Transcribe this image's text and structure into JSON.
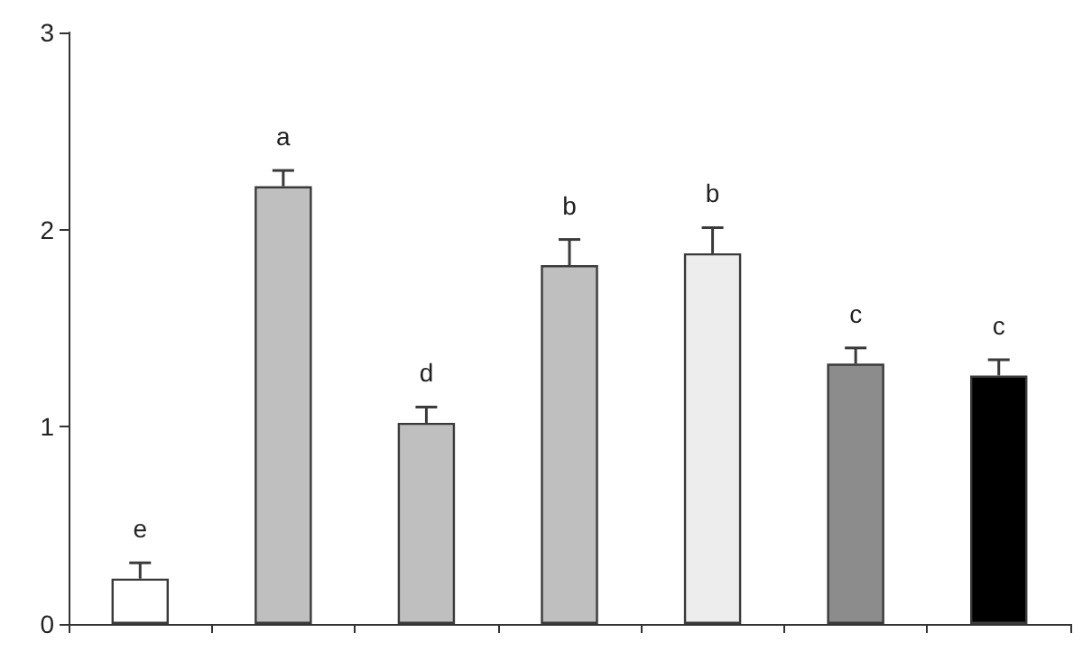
{
  "chart_data": {
    "type": "bar",
    "categories": [
      null,
      null,
      null,
      null,
      null,
      null,
      null
    ],
    "values": [
      0.23,
      2.22,
      1.02,
      1.82,
      1.88,
      1.32,
      1.26
    ],
    "errors": [
      0.08,
      0.08,
      0.08,
      0.13,
      0.13,
      0.08,
      0.08
    ],
    "value_labels": [
      "e",
      "a",
      "d",
      "b",
      "b",
      "c",
      "c"
    ],
    "colors": [
      "#ffffff",
      "#bfbfbf",
      "#bfbfbf",
      "#bfbfbf",
      "#ededed",
      "#8c8c8c",
      "#000000"
    ],
    "ylim": [
      0,
      3
    ],
    "yticks": [
      0,
      1,
      2,
      3
    ],
    "grid": false,
    "tick_labels": "y"
  }
}
